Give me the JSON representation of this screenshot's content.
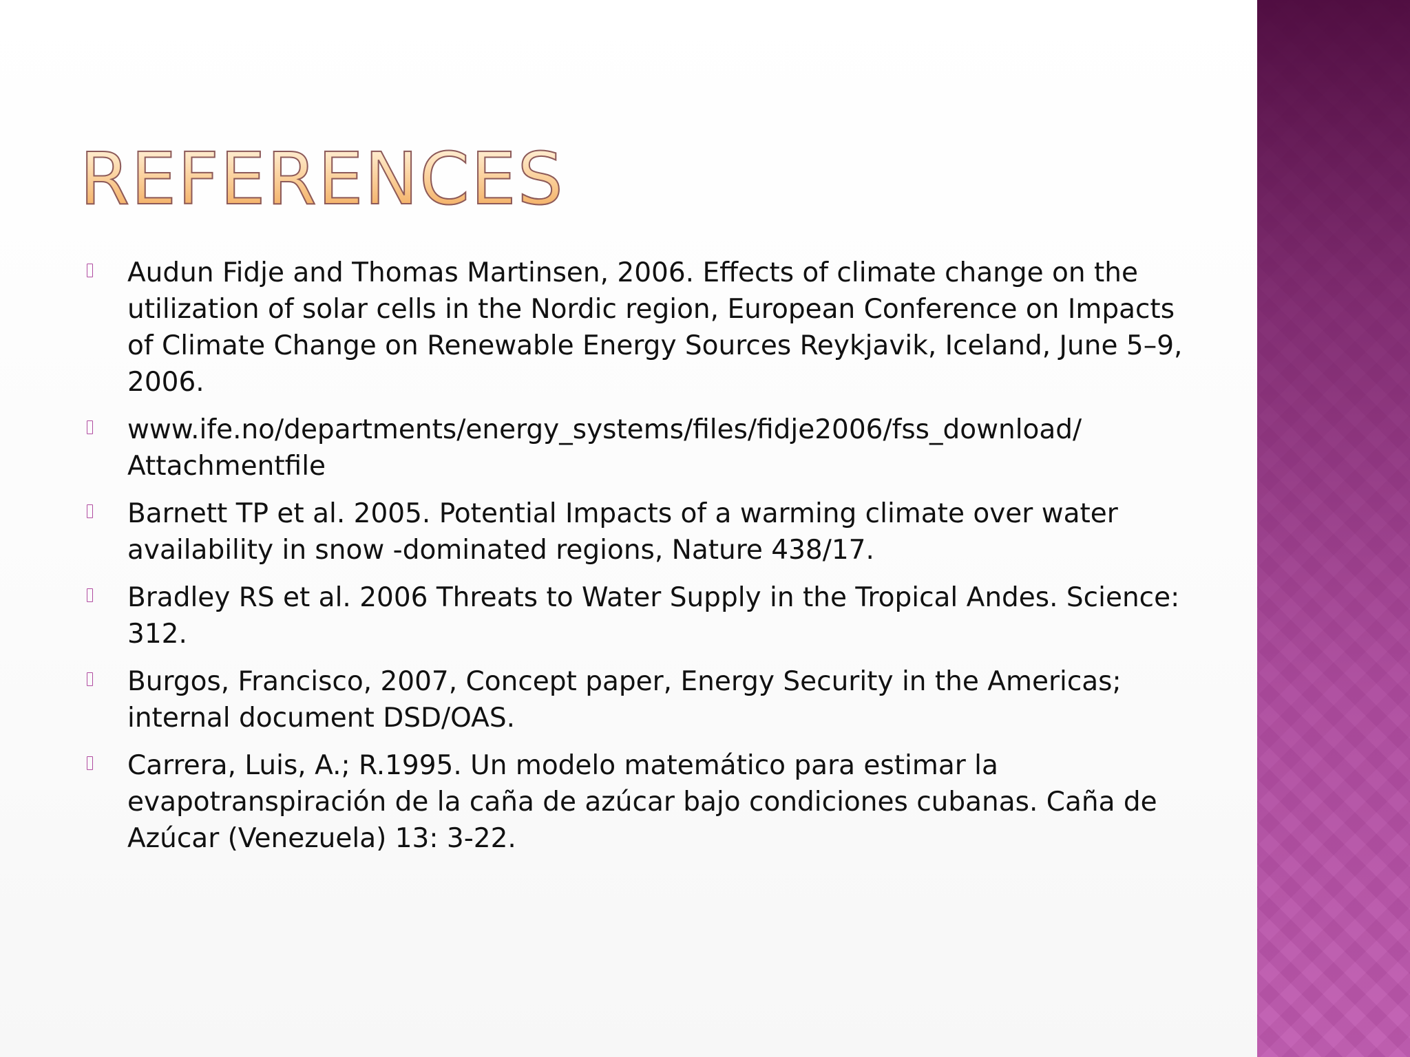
{
  "slide": {
    "title": "REFERENCES",
    "references": [
      "Audun Fidje and Thomas Martinsen, 2006. Effects of climate change on the utilization of solar cells in the Nordic region, European Conference on Impacts of Climate Change on Renewable Energy Sources Reykjavik, Iceland, June 5–9, 2006.",
      "www.ife.no/departments/energy_systems/files/fidje2006/fss_download/ Attachmentfile",
      "Barnett TP et al. 2005. Potential Impacts of a warming climate over water availability in snow -dominated regions, Nature 438/17.",
      "Bradley RS et al. 2006 Threats to Water Supply in the Tropical Andes. Science: 312.",
      "Burgos, Francisco, 2007, Concept paper, Energy Security in the Americas; internal document DSD/OAS.",
      "Carrera, Luis, A.; R.1995. Un modelo matemático para estimar la evapotranspiración de la caña de azúcar bajo condiciones cubanas. Caña de Azúcar (Venezuela) 13: 3-22."
    ]
  },
  "colors": {
    "title_fill": "#f2a95a",
    "title_outline": "#8c5a5a",
    "bullet": "#b04ba0",
    "side_band_top": "#4b0a3c",
    "side_band_bottom": "#c05ab0"
  },
  "icons": {
    "bullet": "bullet-box-icon"
  }
}
